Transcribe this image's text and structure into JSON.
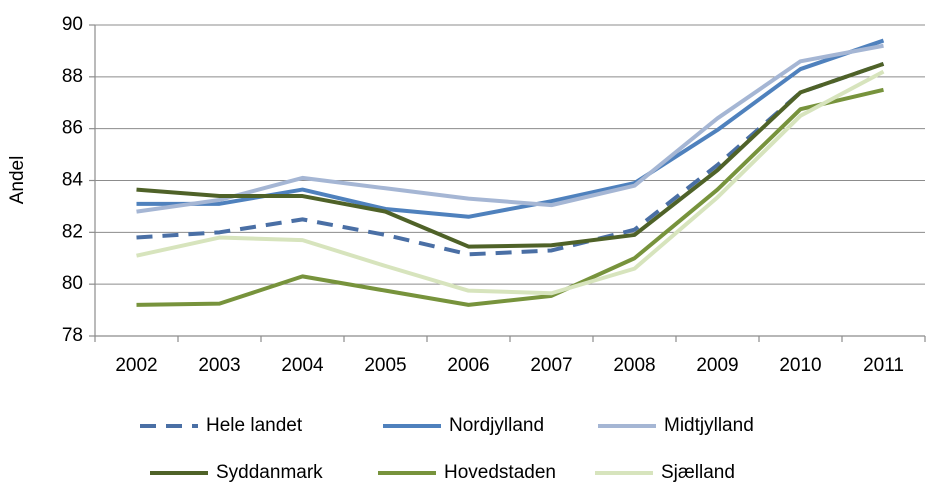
{
  "chart_data": {
    "type": "line",
    "y_label": "Andel",
    "categories": [
      "2002",
      "2003",
      "2004",
      "2005",
      "2006",
      "2007",
      "2008",
      "2009",
      "2010",
      "2011"
    ],
    "series": [
      {
        "name": "Hele landet",
        "color": "#4a6fa5",
        "style": "dashed",
        "values": [
          81.8,
          82.0,
          82.5,
          81.9,
          81.15,
          81.3,
          82.1,
          84.6,
          87.4,
          88.5
        ]
      },
      {
        "name": "Nordjylland",
        "color": "#4f81bd",
        "style": "solid",
        "values": [
          83.1,
          83.1,
          83.65,
          82.9,
          82.6,
          83.2,
          83.9,
          85.95,
          88.3,
          89.4
        ]
      },
      {
        "name": "Midtjylland",
        "color": "#a5b6d4",
        "style": "solid",
        "values": [
          82.8,
          83.25,
          84.1,
          83.7,
          83.3,
          83.05,
          83.8,
          86.4,
          88.6,
          89.2
        ]
      },
      {
        "name": "Syddanmark",
        "color": "#4f6228",
        "style": "solid",
        "values": [
          83.65,
          83.4,
          83.4,
          82.8,
          81.45,
          81.5,
          81.9,
          84.4,
          87.4,
          88.5
        ]
      },
      {
        "name": "Hovedstaden",
        "color": "#77933c",
        "style": "solid",
        "values": [
          79.2,
          79.25,
          80.3,
          79.75,
          79.2,
          79.55,
          81.0,
          83.65,
          86.75,
          87.5
        ]
      },
      {
        "name": "Sjælland",
        "color": "#d7e4bd",
        "style": "solid",
        "values": [
          81.1,
          81.8,
          81.7,
          80.7,
          79.75,
          79.65,
          80.6,
          83.35,
          86.5,
          88.2
        ]
      }
    ],
    "ylim": [
      78,
      90
    ],
    "yticks": [
      78,
      80,
      82,
      84,
      86,
      88,
      90
    ],
    "grid": true,
    "legend": "bottom"
  }
}
